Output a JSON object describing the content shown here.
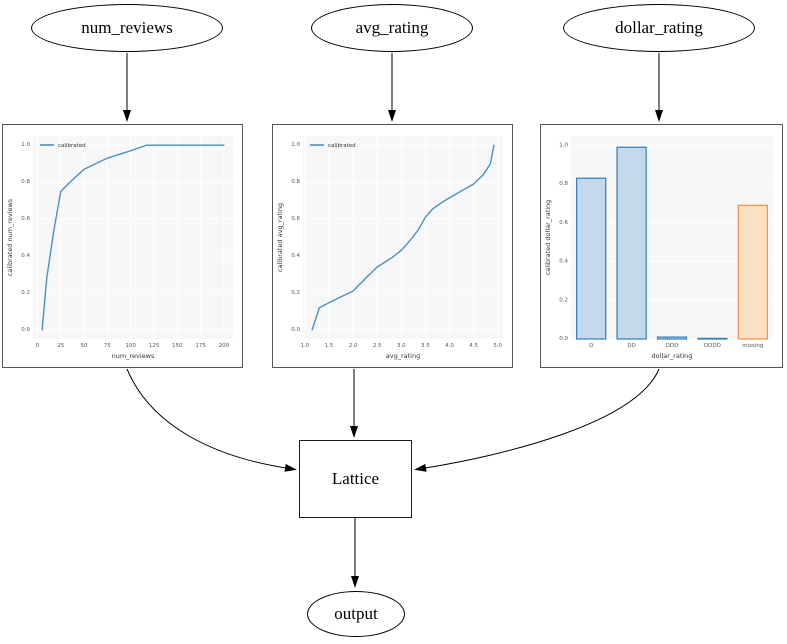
{
  "diagram": {
    "nodes": {
      "num_reviews": {
        "label": "num_reviews"
      },
      "avg_rating": {
        "label": "avg_rating"
      },
      "dollar_rating": {
        "label": "dollar_rating"
      },
      "lattice": {
        "label": "Lattice"
      },
      "output": {
        "label": "output"
      }
    }
  },
  "colors": {
    "line_blue": "#4a90c6",
    "bar_blue_fill": "#c5d9ec",
    "bar_blue_edge": "#2e7ebc",
    "bar_orange_fill": "#fde1c6",
    "bar_orange_edge": "#fd8d3c",
    "plot_bg": "#f7f7f7",
    "grid": "#ffffff",
    "tick_text": "#555555",
    "label_text": "#333333",
    "edge_black": "#000000"
  },
  "chart_data": [
    {
      "type": "line",
      "xlabel": "num_reviews",
      "ylabel": "calibrated num_reviews",
      "legend": [
        "calibrated"
      ],
      "legend_position": "upper left",
      "grid": true,
      "xlim": [
        -4.75,
        209.75
      ],
      "ylim": [
        -0.05,
        1.05
      ],
      "xticks": [
        0,
        25,
        50,
        75,
        100,
        125,
        150,
        175,
        200
      ],
      "xtick_labels": [
        "0",
        "25",
        "50",
        "75",
        "100",
        "125",
        "150",
        "175",
        "200"
      ],
      "yticks": [
        0.0,
        0.2,
        0.4,
        0.6,
        0.8,
        1.0
      ],
      "ytick_labels": [
        "0.0",
        "0.2",
        "0.4",
        "0.6",
        "0.8",
        "1.0"
      ],
      "series": [
        {
          "name": "calibrated",
          "x": [
            5,
            10,
            17,
            25,
            35,
            50,
            75,
            100,
            117,
            200
          ],
          "y": [
            0.0,
            0.28,
            0.52,
            0.75,
            0.8,
            0.87,
            0.93,
            0.97,
            1.0,
            1.0
          ]
        }
      ]
    },
    {
      "type": "line",
      "xlabel": "avg_rating",
      "ylabel": "calibrated avg_rating",
      "legend": [
        "calibrated"
      ],
      "legend_position": "upper left",
      "grid": true,
      "xlim": [
        0.96,
        5.11
      ],
      "ylim": [
        -0.05,
        1.05
      ],
      "xticks": [
        1.0,
        1.5,
        2.0,
        2.5,
        3.0,
        3.5,
        4.0,
        4.5,
        5.0
      ],
      "xtick_labels": [
        "1.0",
        "1.5",
        "2.0",
        "2.5",
        "3.0",
        "3.5",
        "4.0",
        "4.5",
        "5.0"
      ],
      "yticks": [
        0.0,
        0.2,
        0.4,
        0.6,
        0.8,
        1.0
      ],
      "ytick_labels": [
        "0.0",
        "0.2",
        "0.4",
        "0.6",
        "0.8",
        "1.0"
      ],
      "series": [
        {
          "name": "calibrated",
          "x": [
            1.15,
            1.3,
            1.6,
            2.0,
            2.3,
            2.5,
            2.8,
            3.0,
            3.2,
            3.35,
            3.5,
            3.65,
            3.9,
            4.2,
            4.5,
            4.7,
            4.85,
            4.92
          ],
          "y": [
            0.0,
            0.12,
            0.16,
            0.21,
            0.29,
            0.34,
            0.39,
            0.43,
            0.49,
            0.54,
            0.61,
            0.655,
            0.7,
            0.745,
            0.79,
            0.84,
            0.9,
            1.0
          ]
        }
      ]
    },
    {
      "type": "bar",
      "xlabel": "dollar_rating",
      "ylabel": "calibrated dollar_rating",
      "grid": true,
      "categories": [
        "D",
        "DD",
        "DDD",
        "DDDD",
        "missing"
      ],
      "values": [
        0.83,
        0.99,
        0.01,
        0.003,
        0.69
      ],
      "bar_colors": [
        "blue",
        "blue",
        "blue",
        "blue",
        "orange"
      ],
      "ylim": [
        0,
        1.048
      ],
      "yticks": [
        0.0,
        0.2,
        0.4,
        0.6,
        0.8,
        1.0
      ],
      "ytick_labels": [
        "0.0",
        "0.2",
        "0.4",
        "0.6",
        "0.8",
        "1.0"
      ]
    }
  ]
}
